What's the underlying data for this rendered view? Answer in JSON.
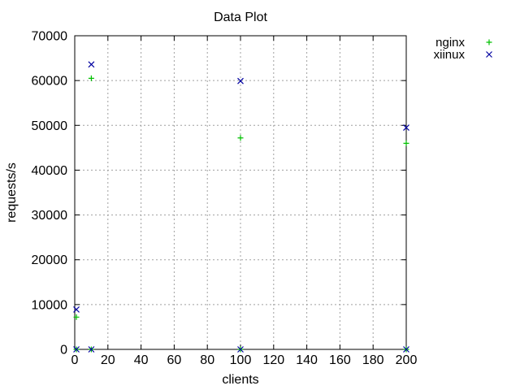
{
  "chart_data": {
    "type": "scatter",
    "title": "Data Plot",
    "xlabel": "clients",
    "ylabel": "requests/s",
    "xlim": [
      0,
      200
    ],
    "ylim": [
      0,
      70000
    ],
    "xticks": [
      0,
      20,
      40,
      60,
      80,
      100,
      120,
      140,
      160,
      180,
      200
    ],
    "yticks": [
      0,
      10000,
      20000,
      30000,
      40000,
      50000,
      60000,
      70000
    ],
    "grid": true,
    "legend_position": "outside-top-right",
    "series": [
      {
        "name": "nginx",
        "marker": "plus",
        "color": "#00c000",
        "points": [
          [
            1,
            0
          ],
          [
            1,
            7200
          ],
          [
            10,
            0
          ],
          [
            10,
            60500
          ],
          [
            100,
            0
          ],
          [
            100,
            47200
          ],
          [
            200,
            0
          ],
          [
            200,
            46000
          ]
        ]
      },
      {
        "name": "xiinux",
        "marker": "cross",
        "color": "#0000a0",
        "points": [
          [
            1,
            0
          ],
          [
            1,
            8900
          ],
          [
            10,
            0
          ],
          [
            10,
            63600
          ],
          [
            100,
            0
          ],
          [
            100,
            59900
          ],
          [
            200,
            0
          ],
          [
            200,
            49500
          ]
        ]
      }
    ]
  }
}
